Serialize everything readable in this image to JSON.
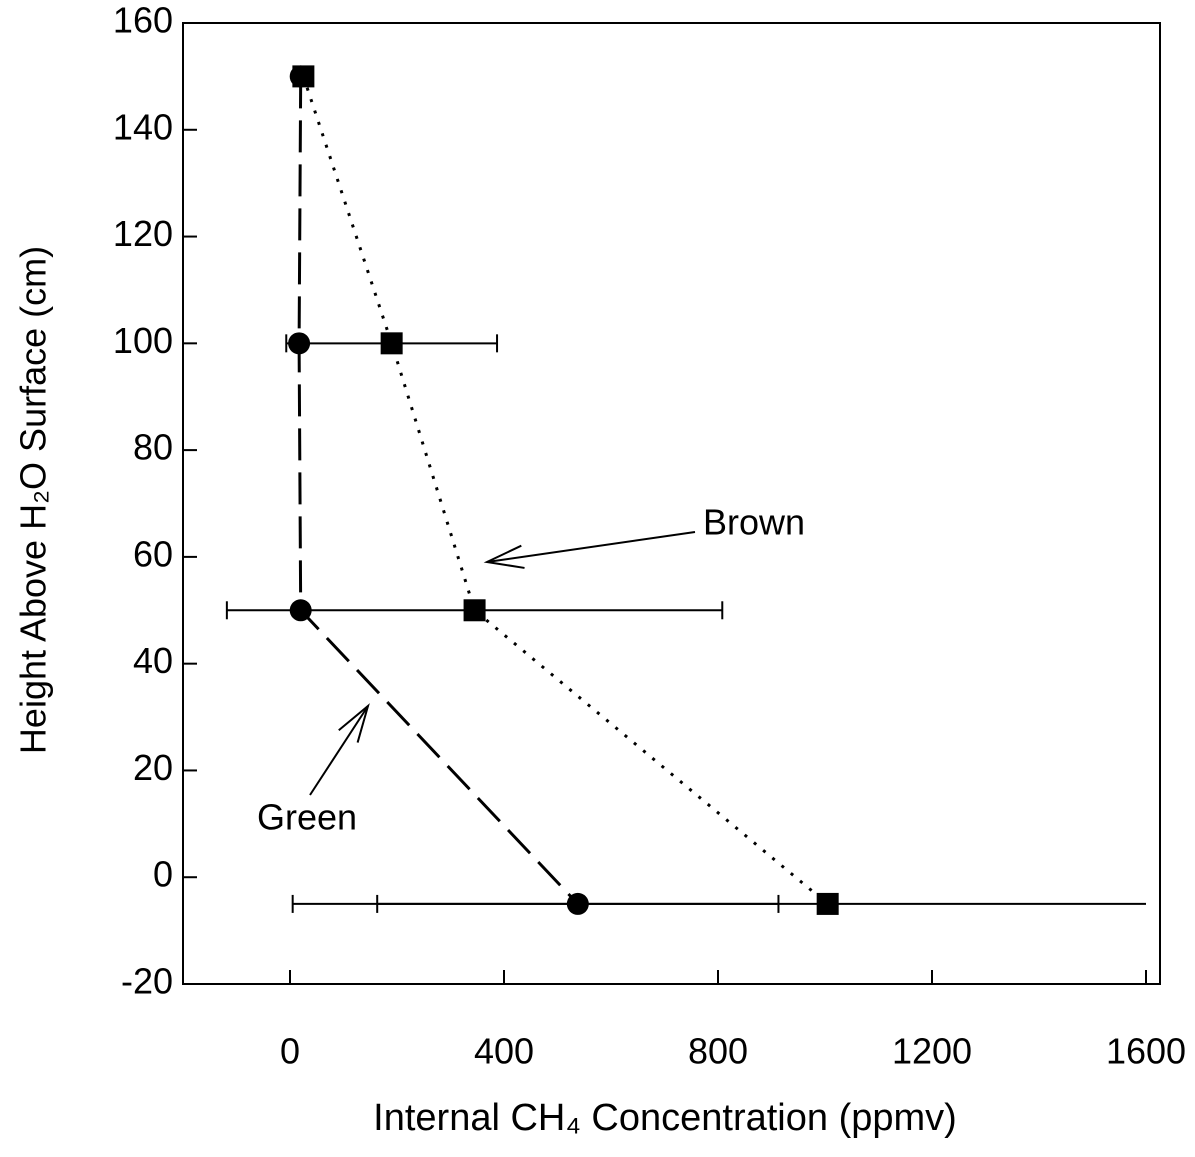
{
  "chart_data": {
    "type": "scatter",
    "xlabel": "Internal CH₄ Concentration (ppmv)",
    "ylabel": "Height Above H₂O Surface (cm)",
    "xlim": [
      -200,
      1600
    ],
    "xticks": [
      0,
      400,
      800,
      1200,
      1600
    ],
    "ylim": [
      -20,
      160
    ],
    "yticks": [
      -20,
      0,
      20,
      40,
      60,
      80,
      100,
      120,
      140,
      160
    ],
    "series": [
      {
        "name": "Green",
        "color": "#000000",
        "marker": "circle",
        "line": "dashed",
        "x": [
          20,
          17,
          20,
          538
        ],
        "values": [
          150,
          100,
          50,
          -5
        ],
        "x_errors": [
          null,
          null,
          null,
          375
        ]
      },
      {
        "name": "Brown",
        "color": "#000000",
        "marker": "square",
        "line": "dotted",
        "x": [
          25,
          190,
          345,
          1005
        ],
        "values": [
          150,
          100,
          50,
          -5
        ],
        "x_errors": [
          null,
          197,
          463,
          1000
        ]
      }
    ]
  }
}
